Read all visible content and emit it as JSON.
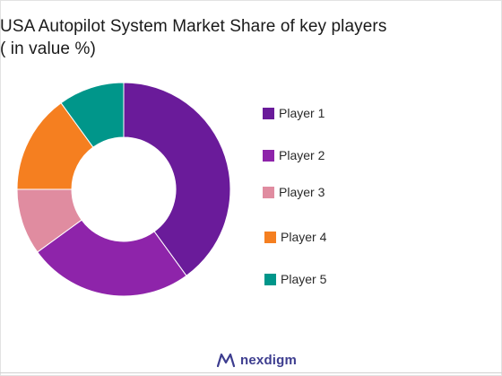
{
  "title": {
    "line1": "USA Autopilot System Market Share of key players",
    "line2": " ( in value %)"
  },
  "chart_data": {
    "type": "pie",
    "variant": "donut",
    "title": "USA Autopilot System Market Share of key players ( in value %)",
    "categories": [
      "Player 1",
      "Player 2",
      "Player 3",
      "Player 4",
      "Player 5"
    ],
    "values": [
      40,
      25,
      10,
      15,
      10
    ],
    "colors": [
      "#6a1b9a",
      "#8e24aa",
      "#e08ca0",
      "#f57f20",
      "#00968a"
    ],
    "legend_position": "right"
  },
  "brand": {
    "name": "nexdigm",
    "icon": "nexdigm-logo-icon",
    "color": "#3d3d8f"
  }
}
